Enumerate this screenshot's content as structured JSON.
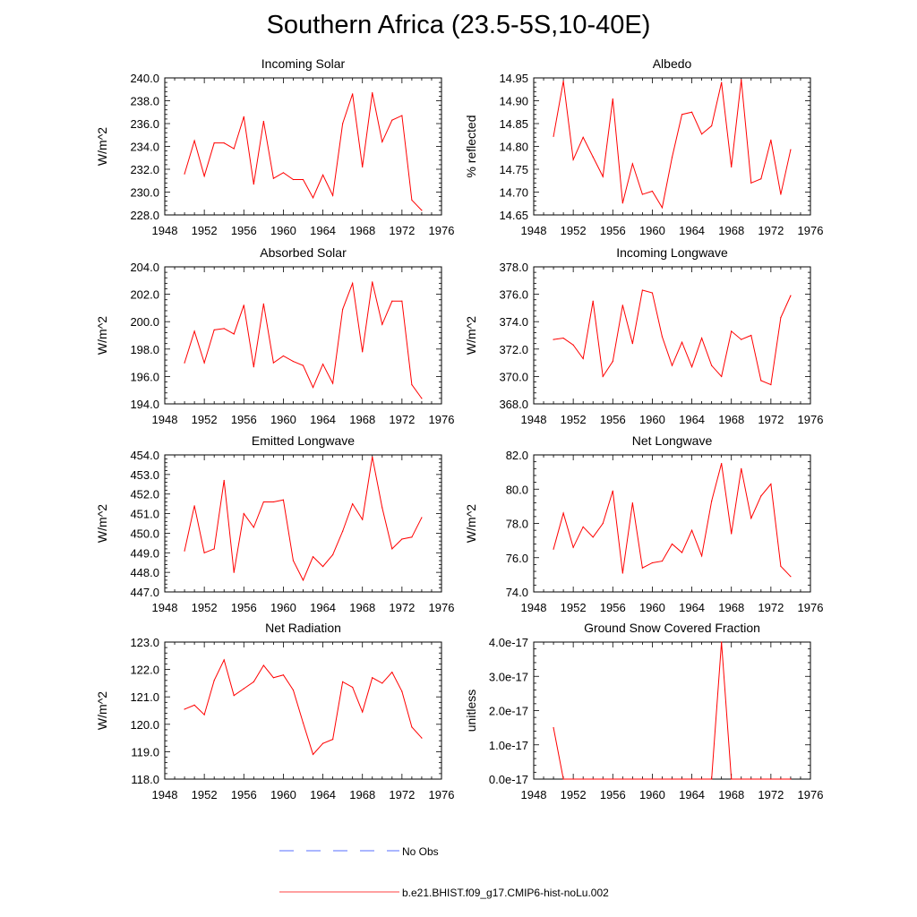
{
  "title": "Southern Africa (23.5-5S,10-40E)",
  "colors": {
    "model": "#ff0000",
    "obs": "#1f3fff"
  },
  "legend": {
    "obs_label": "No Obs",
    "model_label": "b.e21.BHIST.f09_g17.CMIP6-hist-noLu.002"
  },
  "chart_data": [
    {
      "type": "line",
      "title": "Incoming Solar",
      "xlabel": "",
      "ylabel": "W/m^2",
      "xlim": [
        1948,
        1976
      ],
      "ylim": [
        228,
        240
      ],
      "xticks": [
        "1948",
        "1952",
        "1956",
        "1960",
        "1964",
        "1968",
        "1972",
        "1976"
      ],
      "yticks": [
        "228.0",
        "230.0",
        "232.0",
        "234.0",
        "236.0",
        "238.0",
        "240.0"
      ],
      "x": [
        1950,
        1951,
        1952,
        1953,
        1954,
        1955,
        1956,
        1957,
        1958,
        1959,
        1960,
        1961,
        1962,
        1963,
        1964,
        1965,
        1966,
        1967,
        1968,
        1969,
        1970,
        1971,
        1972,
        1973,
        1974
      ],
      "series": [
        {
          "name": "b.e21.BHIST.f09_g17.CMIP6-hist-noLu.002",
          "values": [
            231.6,
            234.5,
            231.4,
            234.3,
            234.3,
            233.8,
            236.6,
            230.7,
            236.2,
            231.2,
            231.7,
            231.1,
            231.1,
            229.5,
            231.5,
            229.7,
            236.0,
            238.6,
            232.2,
            238.7,
            234.4,
            236.3,
            236.7,
            229.3,
            228.4
          ]
        }
      ]
    },
    {
      "type": "line",
      "title": "Albedo",
      "xlabel": "",
      "ylabel": "% reflected",
      "xlim": [
        1948,
        1976
      ],
      "ylim": [
        14.65,
        14.95
      ],
      "xticks": [
        "1948",
        "1952",
        "1956",
        "1960",
        "1964",
        "1968",
        "1972",
        "1976"
      ],
      "yticks": [
        "14.65",
        "14.70",
        "14.75",
        "14.80",
        "14.85",
        "14.90",
        "14.95"
      ],
      "x": [
        1950,
        1951,
        1952,
        1953,
        1954,
        1955,
        1956,
        1957,
        1958,
        1959,
        1960,
        1961,
        1962,
        1963,
        1964,
        1965,
        1966,
        1967,
        1968,
        1969,
        1970,
        1971,
        1972,
        1973,
        1974
      ],
      "series": [
        {
          "name": "b.e21.BHIST.f09_g17.CMIP6-hist-noLu.002",
          "values": [
            14.822,
            14.943,
            14.771,
            14.82,
            14.777,
            14.734,
            14.904,
            14.676,
            14.762,
            14.695,
            14.702,
            14.666,
            14.776,
            14.87,
            14.875,
            14.827,
            14.845,
            14.94,
            14.755,
            14.946,
            14.72,
            14.729,
            14.814,
            14.695,
            14.793
          ]
        }
      ]
    },
    {
      "type": "line",
      "title": "Absorbed Solar",
      "xlabel": "",
      "ylabel": "W/m^2",
      "xlim": [
        1948,
        1976
      ],
      "ylim": [
        194,
        204
      ],
      "xticks": [
        "1948",
        "1952",
        "1956",
        "1960",
        "1964",
        "1968",
        "1972",
        "1976"
      ],
      "yticks": [
        "194.0",
        "196.0",
        "198.0",
        "200.0",
        "202.0",
        "204.0"
      ],
      "x": [
        1950,
        1951,
        1952,
        1953,
        1954,
        1955,
        1956,
        1957,
        1958,
        1959,
        1960,
        1961,
        1962,
        1963,
        1964,
        1965,
        1966,
        1967,
        1968,
        1969,
        1970,
        1971,
        1972,
        1973,
        1974
      ],
      "series": [
        {
          "name": "b.e21.BHIST.f09_g17.CMIP6-hist-noLu.002",
          "values": [
            197.0,
            199.3,
            197.0,
            199.4,
            199.5,
            199.1,
            201.2,
            196.7,
            201.3,
            197.0,
            197.5,
            197.1,
            196.8,
            195.2,
            196.9,
            195.5,
            200.9,
            202.8,
            197.8,
            202.9,
            199.8,
            201.5,
            201.5,
            195.4,
            194.4
          ]
        }
      ]
    },
    {
      "type": "line",
      "title": "Incoming Longwave",
      "xlabel": "",
      "ylabel": "W/m^2",
      "xlim": [
        1948,
        1976
      ],
      "ylim": [
        368,
        378
      ],
      "xticks": [
        "1948",
        "1952",
        "1956",
        "1960",
        "1964",
        "1968",
        "1972",
        "1976"
      ],
      "yticks": [
        "368.0",
        "370.0",
        "372.0",
        "374.0",
        "376.0",
        "378.0"
      ],
      "x": [
        1950,
        1951,
        1952,
        1953,
        1954,
        1955,
        1956,
        1957,
        1958,
        1959,
        1960,
        1961,
        1962,
        1963,
        1964,
        1965,
        1966,
        1967,
        1968,
        1969,
        1970,
        1971,
        1972,
        1973,
        1974
      ],
      "series": [
        {
          "name": "b.e21.BHIST.f09_g17.CMIP6-hist-noLu.002",
          "values": [
            372.7,
            372.8,
            372.3,
            371.3,
            375.5,
            370.0,
            371.1,
            375.2,
            372.4,
            376.3,
            376.1,
            372.9,
            370.8,
            372.5,
            370.7,
            372.8,
            370.8,
            370.0,
            373.3,
            372.7,
            373.0,
            369.7,
            369.4,
            374.3,
            375.9
          ]
        }
      ]
    },
    {
      "type": "line",
      "title": "Emitted Longwave",
      "xlabel": "",
      "ylabel": "W/m^2",
      "xlim": [
        1948,
        1976
      ],
      "ylim": [
        447,
        454
      ],
      "xticks": [
        "1948",
        "1952",
        "1956",
        "1960",
        "1964",
        "1968",
        "1972",
        "1976"
      ],
      "yticks": [
        "447.0",
        "448.0",
        "449.0",
        "450.0",
        "451.0",
        "452.0",
        "453.0",
        "454.0"
      ],
      "x": [
        1950,
        1951,
        1952,
        1953,
        1954,
        1955,
        1956,
        1957,
        1958,
        1959,
        1960,
        1961,
        1962,
        1963,
        1964,
        1965,
        1966,
        1967,
        1968,
        1969,
        1970,
        1971,
        1972,
        1973,
        1974
      ],
      "series": [
        {
          "name": "b.e21.BHIST.f09_g17.CMIP6-hist-noLu.002",
          "values": [
            449.1,
            451.4,
            449.0,
            449.2,
            452.7,
            448.0,
            451.0,
            450.3,
            451.6,
            451.6,
            451.7,
            448.6,
            447.6,
            448.8,
            448.3,
            448.9,
            450.1,
            451.5,
            450.7,
            453.9,
            451.3,
            449.2,
            449.7,
            449.8,
            450.8
          ]
        }
      ]
    },
    {
      "type": "line",
      "title": "Net Longwave",
      "xlabel": "",
      "ylabel": "W/m^2",
      "xlim": [
        1948,
        1976
      ],
      "ylim": [
        74,
        82
      ],
      "xticks": [
        "1948",
        "1952",
        "1956",
        "1960",
        "1964",
        "1968",
        "1972",
        "1976"
      ],
      "yticks": [
        "74.0",
        "76.0",
        "78.0",
        "80.0",
        "82.0"
      ],
      "x": [
        1950,
        1951,
        1952,
        1953,
        1954,
        1955,
        1956,
        1957,
        1958,
        1959,
        1960,
        1961,
        1962,
        1963,
        1964,
        1965,
        1966,
        1967,
        1968,
        1969,
        1970,
        1971,
        1972,
        1973,
        1974
      ],
      "series": [
        {
          "name": "b.e21.BHIST.f09_g17.CMIP6-hist-noLu.002",
          "values": [
            76.5,
            78.6,
            76.6,
            77.8,
            77.2,
            78.0,
            79.9,
            75.1,
            79.2,
            75.4,
            75.7,
            75.8,
            76.8,
            76.3,
            77.6,
            76.1,
            79.3,
            81.5,
            77.4,
            81.2,
            78.3,
            79.6,
            80.3,
            75.5,
            74.9
          ]
        }
      ]
    },
    {
      "type": "line",
      "title": "Net Radiation",
      "xlabel": "",
      "ylabel": "W/m^2",
      "xlim": [
        1948,
        1976
      ],
      "ylim": [
        118,
        123
      ],
      "xticks": [
        "1948",
        "1952",
        "1956",
        "1960",
        "1964",
        "1968",
        "1972",
        "1976"
      ],
      "yticks": [
        "118.0",
        "119.0",
        "120.0",
        "121.0",
        "122.0",
        "123.0"
      ],
      "x": [
        1950,
        1951,
        1952,
        1953,
        1954,
        1955,
        1956,
        1957,
        1958,
        1959,
        1960,
        1961,
        1962,
        1963,
        1964,
        1965,
        1966,
        1967,
        1968,
        1969,
        1970,
        1971,
        1972,
        1973,
        1974
      ],
      "series": [
        {
          "name": "b.e21.BHIST.f09_g17.CMIP6-hist-noLu.002",
          "values": [
            120.55,
            120.7,
            120.35,
            121.6,
            122.35,
            121.05,
            121.3,
            121.55,
            122.15,
            121.7,
            121.8,
            121.25,
            120.05,
            118.9,
            119.3,
            119.45,
            121.55,
            121.35,
            120.45,
            121.7,
            121.5,
            121.9,
            121.2,
            119.9,
            119.5
          ]
        }
      ]
    },
    {
      "type": "line",
      "title": "Ground Snow Covered Fraction",
      "xlabel": "",
      "ylabel": "unitless",
      "xlim": [
        1948,
        1976
      ],
      "ylim": [
        0,
        4e-17
      ],
      "xticks": [
        "1948",
        "1952",
        "1956",
        "1960",
        "1964",
        "1968",
        "1972",
        "1976"
      ],
      "yticks": [
        "0.0e-17",
        "1.0e-17",
        "2.0e-17",
        "3.0e-17",
        "4.0e-17"
      ],
      "x": [
        1950,
        1951,
        1952,
        1953,
        1954,
        1955,
        1956,
        1957,
        1958,
        1959,
        1960,
        1961,
        1962,
        1963,
        1964,
        1965,
        1966,
        1967,
        1968,
        1969,
        1970,
        1971,
        1972,
        1973,
        1974
      ],
      "series": [
        {
          "name": "b.e21.BHIST.f09_g17.CMIP6-hist-noLu.002",
          "values": [
            1.5e-17,
            0,
            0,
            0,
            0,
            0,
            0,
            0,
            0,
            0,
            0,
            0,
            0,
            0,
            0,
            0,
            0,
            4e-17,
            0,
            0,
            0,
            0,
            0,
            0,
            0
          ]
        }
      ]
    }
  ]
}
